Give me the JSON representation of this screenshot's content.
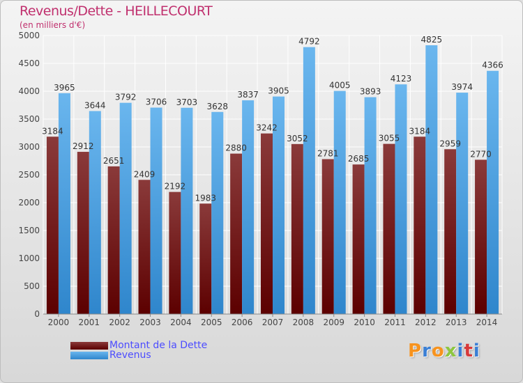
{
  "title": "Revenus/Dette - HEILLECOURT",
  "subtitle": "(en milliers d'€)",
  "brand": {
    "text": "Proxiti",
    "letter_colors": [
      "#f7931e",
      "#3a7fd5",
      "#f7931e",
      "#8dc63f",
      "#3a7fd5",
      "#d7393a",
      "#3a7fd5"
    ]
  },
  "colors": {
    "dette_top": "#8a3a3a",
    "dette_bottom": "#5c0000",
    "revenus_top": "#6ab6ee",
    "revenus_bottom": "#2f86cc",
    "grid": "#ffffff",
    "axis_text": "#444444",
    "label_text": "#333333"
  },
  "chart_data": {
    "type": "bar",
    "title": "Revenus/Dette - HEILLECOURT",
    "ylabel": "(en milliers d'€)",
    "xlabel": "",
    "ylim": [
      0,
      5000
    ],
    "yticks": [
      0,
      500,
      1000,
      1500,
      2000,
      2500,
      3000,
      3500,
      4000,
      4500,
      5000
    ],
    "grid": true,
    "categories": [
      "2000",
      "2001",
      "2002",
      "2003",
      "2004",
      "2005",
      "2006",
      "2007",
      "2008",
      "2009",
      "2010",
      "2011",
      "2012",
      "2013",
      "2014"
    ],
    "series": [
      {
        "name": "Montant de la Dette",
        "values": [
          3184,
          2912,
          2651,
          2409,
          2192,
          1983,
          2880,
          3242,
          3052,
          2781,
          2685,
          3055,
          3184,
          2959,
          2770
        ],
        "labels": [
          "3184",
          "2912",
          "2651",
          "2409",
          "2192",
          "1983",
          "2880",
          "3242",
          "3052",
          "2781",
          "2685",
          "3055",
          "3184",
          "2959",
          "2770"
        ]
      },
      {
        "name": "Revenus",
        "values": [
          3965,
          3644,
          3792,
          3706,
          3703,
          3628,
          3837,
          3905,
          4792,
          4005,
          3893,
          4123,
          4825,
          3974,
          4366
        ],
        "labels": [
          "3965",
          "3644",
          "3792",
          "3706",
          "3703",
          "3628",
          "3837",
          "3905",
          "4792",
          "4005",
          "3893",
          "4123",
          "4825",
          "3974",
          "4366"
        ]
      }
    ],
    "legend": [
      "Montant de la Dette",
      "Revenus"
    ],
    "legend_position": "bottom-left"
  }
}
